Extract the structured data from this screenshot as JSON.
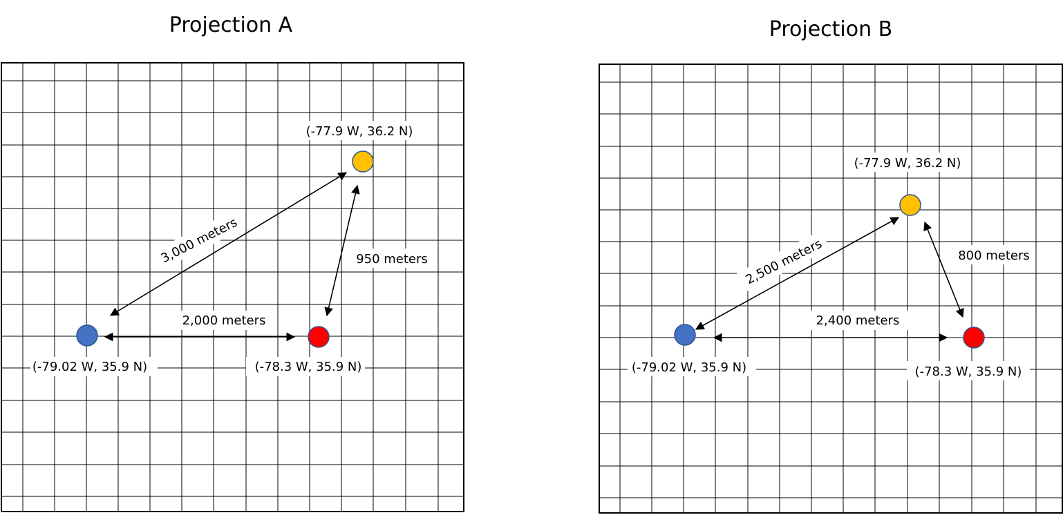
{
  "projections": [
    {
      "title": "Projection A",
      "points": [
        {
          "id": "blue",
          "label": "(-79.02 W, 35.9 N)",
          "color": "#4472C4"
        },
        {
          "id": "red",
          "label": "(-78.3 W, 35.9 N)",
          "color": "#FF0000"
        },
        {
          "id": "yellow",
          "label": "(-77.9 W, 36.2 N)",
          "color": "#FFC000"
        }
      ],
      "distances": [
        {
          "from": "blue",
          "to": "red",
          "label": "2,000 meters"
        },
        {
          "from": "blue",
          "to": "yellow",
          "label": "3,000 meters"
        },
        {
          "from": "red",
          "to": "yellow",
          "label": "950 meters"
        }
      ]
    },
    {
      "title": "Projection B",
      "points": [
        {
          "id": "blue",
          "label": "(-79.02 W, 35.9 N)",
          "color": "#4472C4"
        },
        {
          "id": "red",
          "label": "(-78.3 W, 35.9 N)",
          "color": "#FF0000"
        },
        {
          "id": "yellow",
          "label": "(-77.9 W, 36.2 N)",
          "color": "#FFC000"
        }
      ],
      "distances": [
        {
          "from": "blue",
          "to": "red",
          "label": "2,400 meters"
        },
        {
          "from": "blue",
          "to": "yellow",
          "label": "2,500 meters"
        },
        {
          "from": "red",
          "to": "yellow",
          "label": "800 meters"
        }
      ]
    }
  ]
}
